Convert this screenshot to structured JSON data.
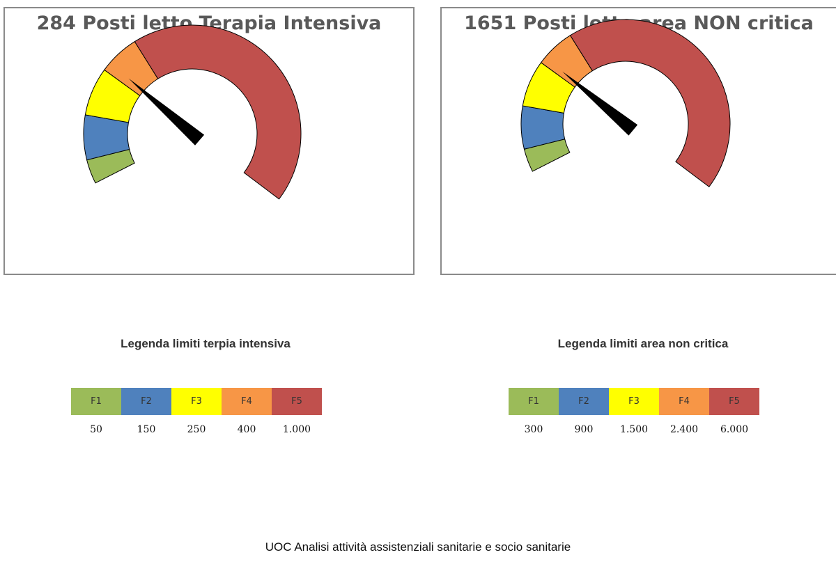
{
  "colors": {
    "F1": "#9BBB59",
    "F2": "#4F81BD",
    "F3": "#FFFF00",
    "F4": "#F79646",
    "F5": "#C0504D",
    "needle": "#000000"
  },
  "chart_data": [
    {
      "type": "gauge",
      "title": "284 Posti letto Terapia Intensiva",
      "value": 284,
      "bands": [
        {
          "name": "F1",
          "max": 50
        },
        {
          "name": "F2",
          "max": 150
        },
        {
          "name": "F3",
          "max": 250
        },
        {
          "name": "F4",
          "max": 400
        },
        {
          "name": "F5",
          "max": 1000
        }
      ]
    },
    {
      "type": "gauge",
      "title": "1651 Posti letto area NON critica",
      "value": 1651,
      "bands": [
        {
          "name": "F1",
          "max": 300
        },
        {
          "name": "F2",
          "max": 900
        },
        {
          "name": "F3",
          "max": 1500
        },
        {
          "name": "F4",
          "max": 2400
        },
        {
          "name": "F5",
          "max": 6000
        }
      ]
    }
  ],
  "legends": [
    {
      "title": "Legenda limiti terpia intensiva",
      "labels": [
        "F1",
        "F2",
        "F3",
        "F4",
        "F5"
      ],
      "values": [
        "50",
        "150",
        "250",
        "400",
        "1.000"
      ]
    },
    {
      "title": "Legenda limiti area non critica",
      "labels": [
        "F1",
        "F2",
        "F3",
        "F4",
        "F5"
      ],
      "values": [
        "300",
        "900",
        "1.500",
        "2.400",
        "6.000"
      ]
    }
  ],
  "footer": "UOC Analisi attività assistenziali sanitarie e socio sanitarie"
}
